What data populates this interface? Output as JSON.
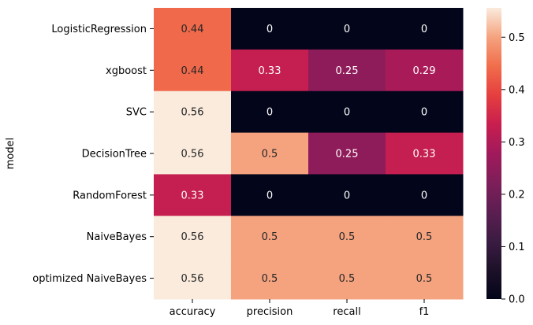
{
  "chart_data": {
    "type": "heatmap",
    "ylabel": "model",
    "xlabel": "",
    "rows": [
      "LogisticRegression",
      "xgboost",
      "SVC",
      "DecisionTree",
      "RandomForest",
      "NaiveBayes",
      "optimized NaiveBayes"
    ],
    "columns": [
      "accuracy",
      "precision",
      "recall",
      "f1"
    ],
    "values": [
      [
        0.44,
        0,
        0,
        0
      ],
      [
        0.44,
        0.33,
        0.25,
        0.29
      ],
      [
        0.56,
        0,
        0,
        0
      ],
      [
        0.56,
        0.5,
        0.25,
        0.33
      ],
      [
        0.33,
        0,
        0,
        0
      ],
      [
        0.56,
        0.5,
        0.5,
        0.5
      ],
      [
        0.56,
        0.5,
        0.5,
        0.5
      ]
    ],
    "labels": [
      [
        "0.44",
        "0",
        "0",
        "0"
      ],
      [
        "0.44",
        "0.33",
        "0.25",
        "0.29"
      ],
      [
        "0.56",
        "0",
        "0",
        "0"
      ],
      [
        "0.56",
        "0.5",
        "0.25",
        "0.33"
      ],
      [
        "0.33",
        "0",
        "0",
        "0"
      ],
      [
        "0.56",
        "0.5",
        "0.5",
        "0.5"
      ],
      [
        "0.56",
        "0.5",
        "0.5",
        "0.5"
      ]
    ],
    "colorbar": {
      "range": [
        0,
        0.556
      ],
      "ticks": [
        0.0,
        0.1,
        0.2,
        0.3,
        0.4,
        0.5
      ],
      "tick_labels": [
        "0.0",
        "0.1",
        "0.2",
        "0.3",
        "0.4",
        "0.5"
      ]
    },
    "colormap": "rocket",
    "grid": false
  }
}
